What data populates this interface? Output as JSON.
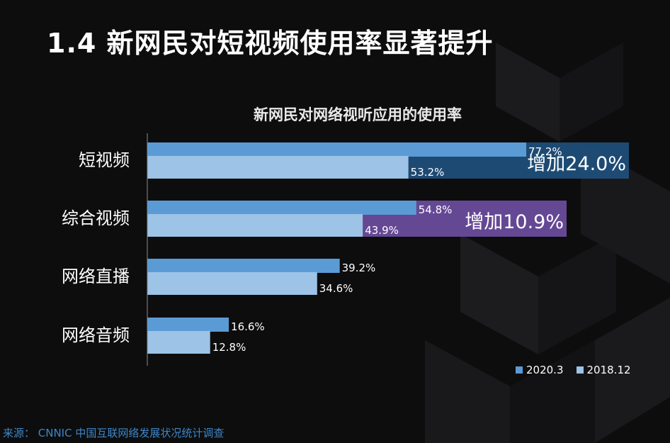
{
  "slide": {
    "title": "1.4 新网民对短视频使用率显著提升",
    "source": "来源： CNNIC 中国互联网络发展状况统计调查"
  },
  "colors": {
    "background": "#0d0d0e",
    "series_2020": "#5b9bd5",
    "series_2018": "#9dc3e6",
    "increase_short_video": "#1f4e79",
    "increase_general_video": "#6a4c9c",
    "source_text": "#3d86c8"
  },
  "chart_data": {
    "type": "bar",
    "orientation": "horizontal",
    "title": "新网民对网络视听应用的使用率",
    "categories": [
      "短视频",
      "综合视频",
      "网络直播",
      "网络音频"
    ],
    "series": [
      {
        "name": "2020.3",
        "values": [
          77.2,
          54.8,
          39.2,
          16.6
        ],
        "labels": [
          "77.2%",
          "54.8%",
          "39.2%",
          "16.6%"
        ]
      },
      {
        "name": "2018.12",
        "values": [
          53.2,
          43.9,
          34.6,
          12.8
        ],
        "labels": [
          "53.2%",
          "43.9%",
          "34.6%",
          "12.8%"
        ]
      }
    ],
    "annotations": [
      {
        "category": "短视频",
        "text": "增加24.0%"
      },
      {
        "category": "综合视频",
        "text": "增加10.9%"
      }
    ],
    "xlim": [
      0,
      100
    ],
    "grid": false,
    "legend": "bottom-right"
  }
}
